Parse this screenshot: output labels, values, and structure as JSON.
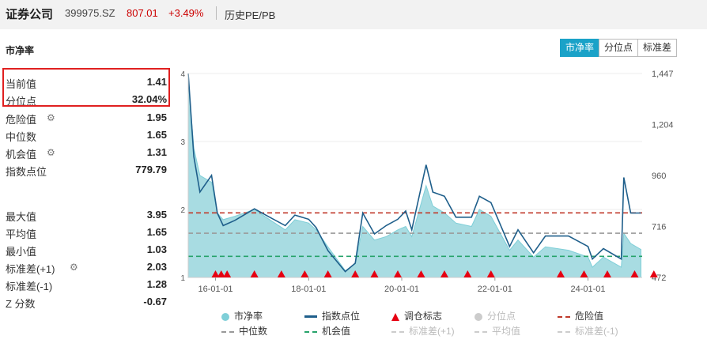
{
  "header": {
    "title": "证券公司",
    "code": "399975.SZ",
    "price": "807.01",
    "change": "+3.49%",
    "link": "历史PE/PB"
  },
  "section_title": "市净率",
  "tabs": [
    "市净率",
    "分位点",
    "标准差"
  ],
  "stats": {
    "current": {
      "label": "当前值",
      "value": "1.41"
    },
    "percentile": {
      "label": "分位点",
      "value": "32.04%"
    },
    "danger": {
      "label": "危险值",
      "value": "1.95"
    },
    "median": {
      "label": "中位数",
      "value": "1.65"
    },
    "opportunity": {
      "label": "机会值",
      "value": "1.31"
    },
    "index_level": {
      "label": "指数点位",
      "value": "779.79"
    },
    "max": {
      "label": "最大值",
      "value": "3.95"
    },
    "mean": {
      "label": "平均值",
      "value": "1.65"
    },
    "min": {
      "label": "最小值",
      "value": "1.03"
    },
    "std_plus": {
      "label": "标准差(+1)",
      "value": "2.03"
    },
    "std_minus": {
      "label": "标准差(-1)",
      "value": "1.28"
    },
    "zscore": {
      "label": "Z 分数",
      "value": "-0.67"
    }
  },
  "legend": [
    {
      "label": "市净率",
      "color": "#7fcfd8",
      "marker": "dot",
      "active": true
    },
    {
      "label": "指数点位",
      "color": "#1f5f8b",
      "marker": "line",
      "active": true
    },
    {
      "label": "调仓标志",
      "color": "#e60012",
      "marker": "triangle",
      "active": true
    },
    {
      "label": "分位点",
      "color": "#cccccc",
      "marker": "dot",
      "active": false
    },
    {
      "label": "危险值",
      "color": "#c0392b",
      "marker": "dash",
      "active": true
    },
    {
      "label": "中位数",
      "color": "#999999",
      "marker": "dash",
      "active": true
    },
    {
      "label": "机会值",
      "color": "#27a36b",
      "marker": "dash",
      "active": true
    },
    {
      "label": "标准差(+1)",
      "color": "#cccccc",
      "marker": "dash",
      "active": false
    },
    {
      "label": "平均值",
      "color": "#cccccc",
      "marker": "dash",
      "active": false
    },
    {
      "label": "标准差(-1)",
      "color": "#cccccc",
      "marker": "dash",
      "active": false
    }
  ],
  "chart_data": {
    "type": "area",
    "x_ticks": [
      "16-01-01",
      "18-01-01",
      "20-01-01",
      "22-01-01",
      "24-01-01"
    ],
    "x_range": [
      "2015-06-01",
      "2025-03-01"
    ],
    "y_left": {
      "ticks": [
        "1",
        "2",
        "3",
        "4"
      ],
      "range": [
        1,
        4
      ]
    },
    "y_right": {
      "ticks": [
        "472",
        "716",
        "960",
        "1,204",
        "1,447"
      ],
      "range": [
        472,
        1447
      ]
    },
    "reference_lines": {
      "danger": 1.95,
      "median": 1.65,
      "opportunity": 1.31
    },
    "series": [
      {
        "name": "市净率",
        "axis": "left",
        "points": [
          [
            "2015-06-01",
            3.9
          ],
          [
            "2015-07-15",
            2.9
          ],
          [
            "2015-09-01",
            2.5
          ],
          [
            "2015-12-01",
            2.4
          ],
          [
            "2016-01-15",
            1.95
          ],
          [
            "2016-03-01",
            1.85
          ],
          [
            "2016-06-01",
            1.9
          ],
          [
            "2016-11-01",
            2.0
          ],
          [
            "2017-03-01",
            1.85
          ],
          [
            "2017-07-01",
            1.7
          ],
          [
            "2017-09-15",
            1.85
          ],
          [
            "2018-01-01",
            1.8
          ],
          [
            "2018-03-01",
            1.7
          ],
          [
            "2018-06-01",
            1.45
          ],
          [
            "2018-10-15",
            1.1
          ],
          [
            "2019-01-01",
            1.2
          ],
          [
            "2019-03-01",
            1.75
          ],
          [
            "2019-06-01",
            1.55
          ],
          [
            "2019-09-01",
            1.6
          ],
          [
            "2019-12-01",
            1.7
          ],
          [
            "2020-02-01",
            1.75
          ],
          [
            "2020-03-20",
            1.6
          ],
          [
            "2020-07-10",
            2.35
          ],
          [
            "2020-09-01",
            2.05
          ],
          [
            "2020-12-01",
            1.95
          ],
          [
            "2021-03-01",
            1.8
          ],
          [
            "2021-07-01",
            1.75
          ],
          [
            "2021-09-01",
            2.0
          ],
          [
            "2021-12-01",
            1.9
          ],
          [
            "2022-04-26",
            1.4
          ],
          [
            "2022-07-01",
            1.55
          ],
          [
            "2022-10-31",
            1.3
          ],
          [
            "2023-02-01",
            1.45
          ],
          [
            "2023-08-01",
            1.4
          ],
          [
            "2024-01-01",
            1.3
          ],
          [
            "2024-02-05",
            1.15
          ],
          [
            "2024-05-01",
            1.3
          ],
          [
            "2024-09-18",
            1.15
          ],
          [
            "2024-10-08",
            1.65
          ],
          [
            "2024-12-01",
            1.5
          ],
          [
            "2025-02-20",
            1.41
          ]
        ]
      },
      {
        "name": "指数点位",
        "axis": "right",
        "points": [
          [
            "2015-06-01",
            1447
          ],
          [
            "2015-07-15",
            1050
          ],
          [
            "2015-09-01",
            880
          ],
          [
            "2015-12-01",
            960
          ],
          [
            "2016-01-15",
            780
          ],
          [
            "2016-03-01",
            720
          ],
          [
            "2016-06-01",
            745
          ],
          [
            "2016-11-01",
            800
          ],
          [
            "2017-03-01",
            760
          ],
          [
            "2017-07-01",
            720
          ],
          [
            "2017-09-15",
            770
          ],
          [
            "2018-01-01",
            750
          ],
          [
            "2018-03-01",
            710
          ],
          [
            "2018-06-01",
            600
          ],
          [
            "2018-10-15",
            500
          ],
          [
            "2019-01-01",
            540
          ],
          [
            "2019-03-01",
            780
          ],
          [
            "2019-06-01",
            680
          ],
          [
            "2019-09-01",
            720
          ],
          [
            "2019-12-01",
            750
          ],
          [
            "2020-02-01",
            790
          ],
          [
            "2020-03-20",
            700
          ],
          [
            "2020-07-10",
            1010
          ],
          [
            "2020-09-01",
            880
          ],
          [
            "2020-12-01",
            860
          ],
          [
            "2021-03-01",
            760
          ],
          [
            "2021-07-01",
            760
          ],
          [
            "2021-09-01",
            860
          ],
          [
            "2021-12-01",
            830
          ],
          [
            "2022-04-26",
            620
          ],
          [
            "2022-07-01",
            700
          ],
          [
            "2022-10-31",
            590
          ],
          [
            "2023-02-01",
            670
          ],
          [
            "2023-08-01",
            670
          ],
          [
            "2024-01-01",
            620
          ],
          [
            "2024-02-05",
            560
          ],
          [
            "2024-05-01",
            610
          ],
          [
            "2024-09-18",
            560
          ],
          [
            "2024-10-08",
            950
          ],
          [
            "2024-12-01",
            780
          ],
          [
            "2025-02-20",
            780
          ]
        ]
      }
    ],
    "rebalance_markers": [
      "2016-01-01",
      "2016-02-15",
      "2016-04-01",
      "2016-11-01",
      "2017-06-01",
      "2017-12-01",
      "2018-06-01",
      "2019-01-01",
      "2019-06-01",
      "2019-12-01",
      "2020-06-01",
      "2020-12-01",
      "2021-06-01",
      "2021-12-01",
      "2023-06-01",
      "2023-12-01",
      "2024-06-01",
      "2025-01-01",
      "2025-06-01"
    ]
  }
}
